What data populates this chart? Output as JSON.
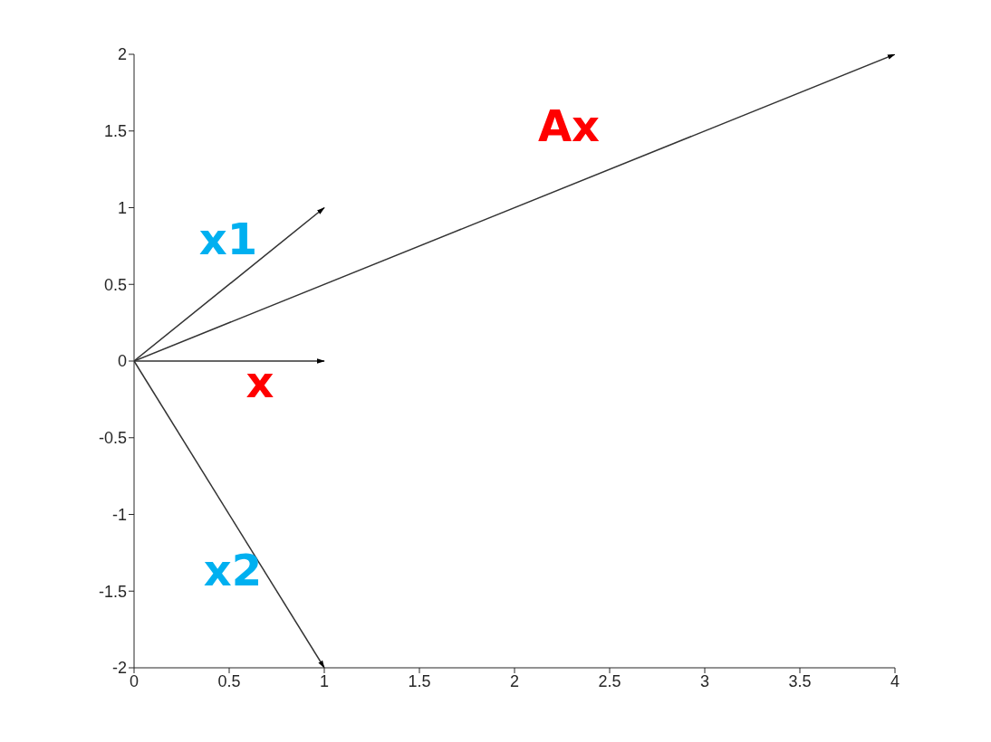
{
  "chart_data": {
    "type": "line",
    "xlim": [
      0,
      4
    ],
    "xticks": [
      0,
      0.5,
      1,
      1.5,
      2,
      2.5,
      3,
      3.5,
      4
    ],
    "ylim": [
      -2,
      2
    ],
    "yticks": [
      -2,
      -1.5,
      -1,
      -0.5,
      0,
      0.5,
      1,
      1.5,
      2
    ],
    "grid": false,
    "marker": "none",
    "line_style": "solid",
    "series": [
      {
        "name": "Ax",
        "color": "#333333",
        "x": [
          0,
          4
        ],
        "values": [
          0,
          2
        ]
      },
      {
        "name": "x1",
        "color": "#333333",
        "x": [
          0,
          1
        ],
        "values": [
          0,
          1
        ]
      },
      {
        "name": "x",
        "color": "#333333",
        "x": [
          0,
          1
        ],
        "values": [
          0,
          0
        ]
      },
      {
        "name": "x2",
        "color": "#333333",
        "x": [
          0,
          1
        ],
        "values": [
          0,
          -2
        ]
      }
    ]
  }
}
